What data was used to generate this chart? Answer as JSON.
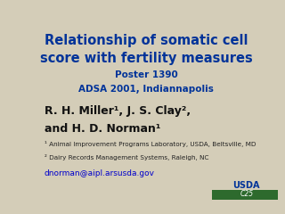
{
  "bg_color": "#d4cdb8",
  "title_line1": "Relationship of somatic cell",
  "title_line2": "score with fertility measures",
  "subtitle_line1": "Poster 1390",
  "subtitle_line2": "ADSA 2001, Indiannapolis",
  "title_color": "#003399",
  "subtitle_color": "#003399",
  "author_line1": "R. H. Miller¹, J. S. Clay²,",
  "author_line2": "and H. D. Norman¹",
  "author_color": "#111111",
  "affil1": "¹ Animal Improvement Programs Laboratory, USDA, Beltsville, MD",
  "affil2": "² Dairy Records Management Systems, Raleigh, NC",
  "affil_color": "#222222",
  "email": "dnorman@aipl.arsusda.gov",
  "email_color": "#0000cc",
  "usda_text": "USDA",
  "usda_color": "#003399",
  "c25_text": "C25",
  "green_color": "#2d6a2d"
}
